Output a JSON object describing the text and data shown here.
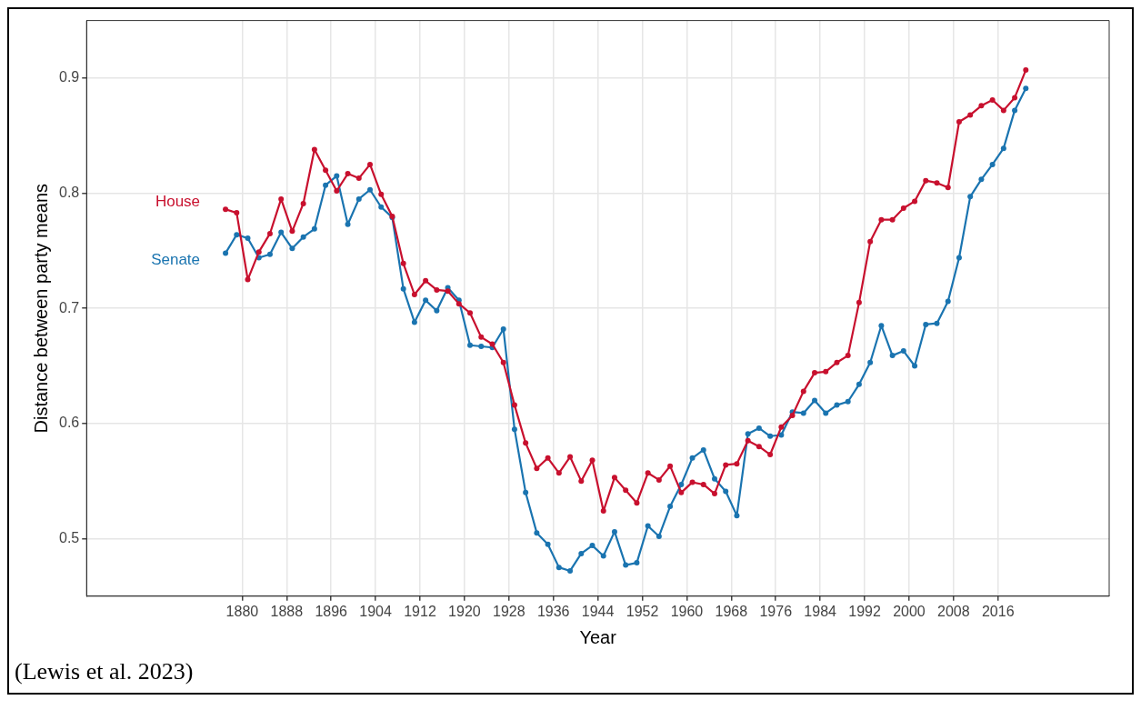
{
  "chart_data": {
    "type": "line",
    "xlabel": "Year",
    "ylabel": "Distance between party means",
    "x": [
      1877,
      1879,
      1881,
      1883,
      1885,
      1887,
      1889,
      1891,
      1893,
      1895,
      1897,
      1899,
      1901,
      1903,
      1905,
      1907,
      1909,
      1911,
      1913,
      1915,
      1917,
      1919,
      1921,
      1923,
      1925,
      1927,
      1929,
      1931,
      1933,
      1935,
      1937,
      1939,
      1941,
      1943,
      1945,
      1947,
      1949,
      1951,
      1953,
      1955,
      1957,
      1959,
      1961,
      1963,
      1965,
      1967,
      1969,
      1971,
      1973,
      1975,
      1977,
      1979,
      1981,
      1983,
      1985,
      1987,
      1989,
      1991,
      1993,
      1995,
      1997,
      1999,
      2001,
      2003,
      2005,
      2007,
      2009,
      2011,
      2013,
      2015,
      2017,
      2019,
      2021
    ],
    "series": [
      {
        "name": "House",
        "color": "#c8102e",
        "values": [
          0.786,
          0.783,
          0.725,
          0.749,
          0.765,
          0.795,
          0.767,
          0.791,
          0.838,
          0.82,
          0.802,
          0.817,
          0.813,
          0.825,
          0.799,
          0.78,
          0.739,
          0.712,
          0.724,
          0.716,
          0.715,
          0.704,
          0.696,
          0.675,
          0.669,
          0.653,
          0.616,
          0.583,
          0.561,
          0.57,
          0.557,
          0.571,
          0.55,
          0.568,
          0.524,
          0.553,
          0.542,
          0.531,
          0.557,
          0.551,
          0.563,
          0.54,
          0.549,
          0.547,
          0.539,
          0.564,
          0.565,
          0.585,
          0.58,
          0.573,
          0.597,
          0.607,
          0.628,
          0.644,
          0.645,
          0.653,
          0.659,
          0.705,
          0.758,
          0.777,
          0.777,
          0.787,
          0.793,
          0.811,
          0.809,
          0.805,
          0.862,
          0.868,
          0.876,
          0.881,
          0.872,
          0.883,
          0.907
        ]
      },
      {
        "name": "Senate",
        "color": "#1a74b0",
        "values": [
          0.748,
          0.764,
          0.761,
          0.744,
          0.747,
          0.766,
          0.752,
          0.762,
          0.769,
          0.807,
          0.815,
          0.773,
          0.795,
          0.803,
          0.788,
          0.779,
          0.717,
          0.688,
          0.707,
          0.698,
          0.718,
          0.707,
          0.668,
          0.667,
          0.666,
          0.682,
          0.595,
          0.54,
          0.505,
          0.495,
          0.475,
          0.472,
          0.487,
          0.494,
          0.485,
          0.506,
          0.477,
          0.479,
          0.511,
          0.502,
          0.528,
          0.547,
          0.57,
          0.577,
          0.552,
          0.541,
          0.52,
          0.591,
          0.596,
          0.589,
          0.59,
          0.61,
          0.609,
          0.62,
          0.609,
          0.616,
          0.619,
          0.634,
          0.653,
          0.685,
          0.659,
          0.663,
          0.65,
          0.686,
          0.687,
          0.706,
          0.744,
          0.797,
          0.812,
          0.825,
          0.839,
          0.872,
          0.891
        ]
      }
    ],
    "xlim": [
      1852,
      2036
    ],
    "xticks": [
      1880,
      1888,
      1896,
      1904,
      1912,
      1920,
      1928,
      1936,
      1944,
      1952,
      1960,
      1968,
      1976,
      1984,
      1992,
      2000,
      2008,
      2016
    ],
    "ylim": [
      0.45,
      0.95
    ],
    "yticks": [
      0.5,
      0.6,
      0.7,
      0.8,
      0.9
    ],
    "grid": true,
    "marker": "circle",
    "line_style": "solid",
    "legend": false,
    "annotations": [
      "(Lewis et al. 2023)"
    ]
  }
}
